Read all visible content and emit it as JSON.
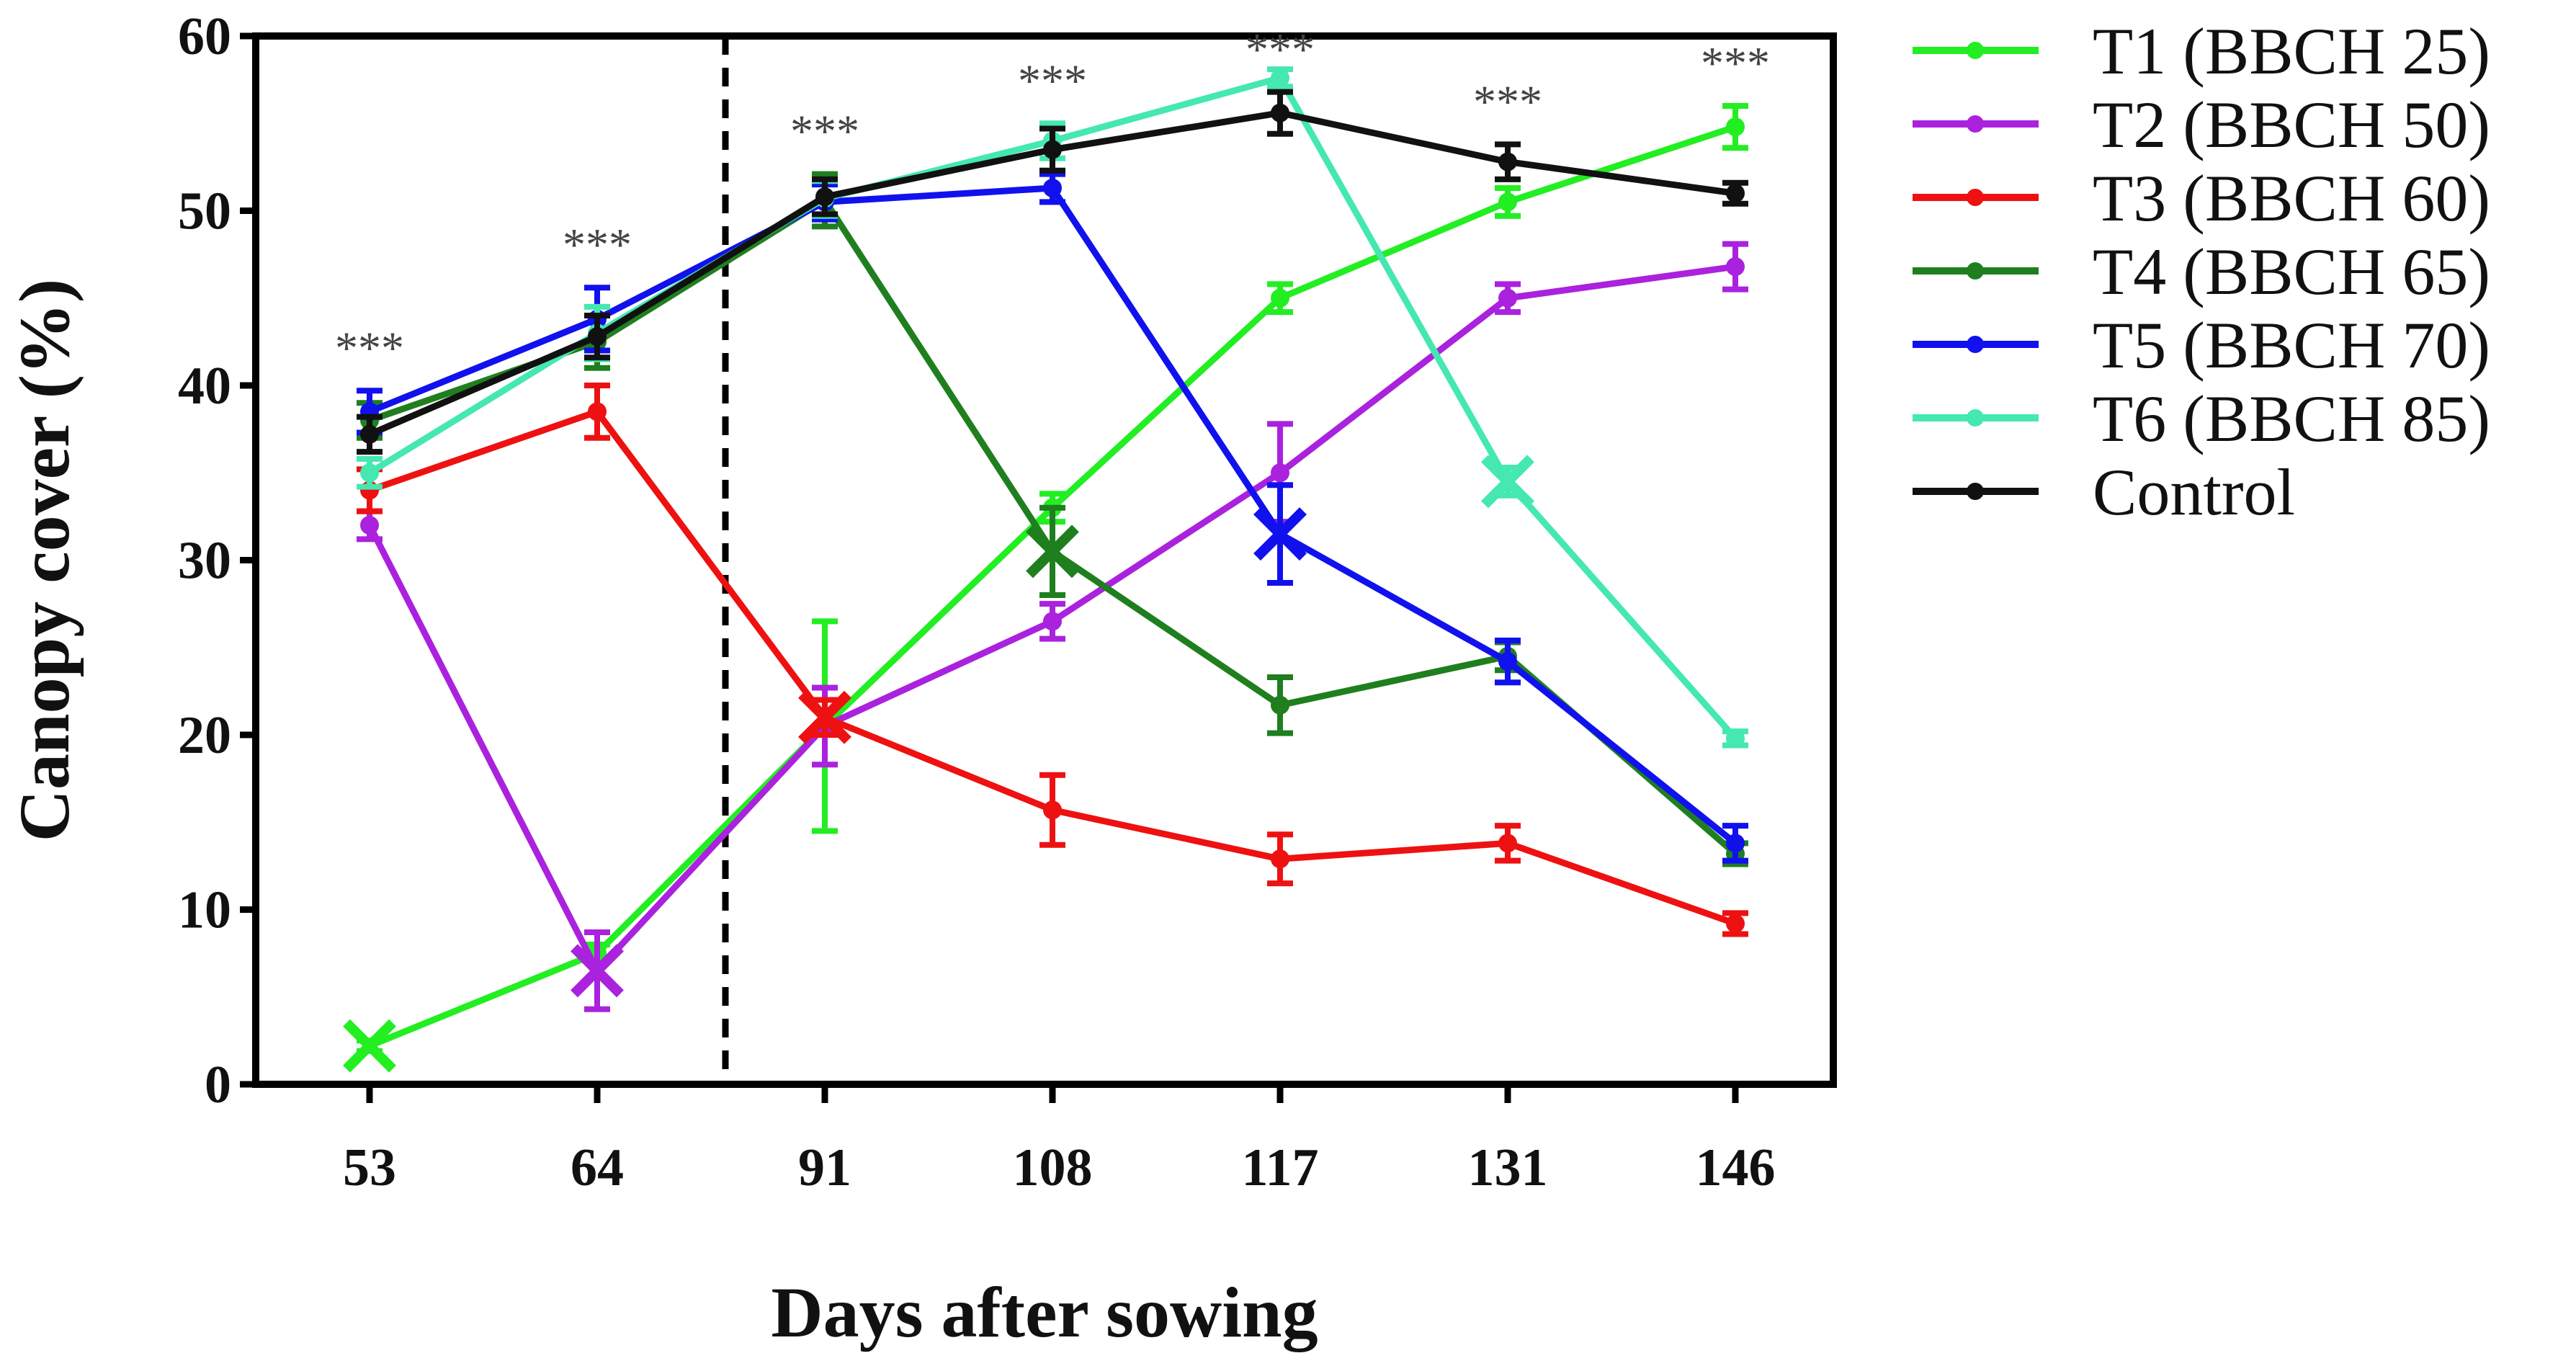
{
  "chart_data": {
    "type": "line",
    "title": "",
    "xlabel": "Days after sowing",
    "ylabel": "Canopy cover (%)",
    "categories": [
      "53",
      "64",
      "91",
      "108",
      "117",
      "131",
      "146"
    ],
    "ylim": [
      0,
      60
    ],
    "yticks": [
      "0",
      "10",
      "20",
      "30",
      "40",
      "50",
      "60"
    ],
    "dashed_line_after_category": "64",
    "significance": [
      {
        "x": "53",
        "label": "***"
      },
      {
        "x": "64",
        "label": "***"
      },
      {
        "x": "91",
        "label": "***"
      },
      {
        "x": "108",
        "label": "***"
      },
      {
        "x": "117",
        "label": "***"
      },
      {
        "x": "131",
        "label": "***"
      },
      {
        "x": "146",
        "label": "***"
      }
    ],
    "series": [
      {
        "name": "T1 (BBCH 25)",
        "color": "#22ee22",
        "values": [
          2.2,
          7.5,
          20.5,
          33.0,
          45.0,
          50.5,
          54.8
        ],
        "errors": [
          0.3,
          0.5,
          6.0,
          0.8,
          0.8,
          0.8,
          1.2
        ],
        "x_marker_index": 0
      },
      {
        "name": "T2 (BBCH 50)",
        "color": "#aa22dd",
        "values": [
          32.0,
          6.5,
          20.5,
          26.5,
          35.0,
          45.0,
          46.8
        ],
        "errors": [
          0.8,
          2.2,
          2.2,
          1.0,
          2.8,
          0.8,
          1.3
        ],
        "x_marker_index": 1
      },
      {
        "name": "T3 (BBCH 60)",
        "color": "#ee1111",
        "values": [
          34.0,
          38.5,
          21.0,
          15.7,
          12.9,
          13.8,
          9.2
        ],
        "errors": [
          1.2,
          1.5,
          1.0,
          2.0,
          1.4,
          1.0,
          0.6
        ],
        "x_marker_index": 2
      },
      {
        "name": "T4 (BBCH 65)",
        "color": "#1f7f1f",
        "values": [
          38.0,
          42.5,
          50.6,
          30.5,
          21.7,
          24.5,
          13.2
        ],
        "errors": [
          1.0,
          1.5,
          1.5,
          2.5,
          1.6,
          0.8,
          0.6
        ],
        "x_marker_index": 3
      },
      {
        "name": "T5 (BBCH 70)",
        "color": "#1111ee",
        "values": [
          38.5,
          43.8,
          50.5,
          51.3,
          31.5,
          24.2,
          13.8
        ],
        "errors": [
          1.2,
          1.8,
          1.0,
          0.8,
          2.8,
          1.2,
          1.0
        ],
        "x_marker_index": 4
      },
      {
        "name": "T6 (BBCH 85)",
        "color": "#44e8b0",
        "values": [
          35.0,
          43.0,
          50.7,
          54.0,
          57.6,
          34.5,
          19.8
        ],
        "errors": [
          0.8,
          1.5,
          1.0,
          1.0,
          0.5,
          0.8,
          0.4
        ],
        "x_marker_index": 5
      },
      {
        "name": "Control",
        "color": "#111111",
        "values": [
          37.2,
          42.8,
          50.8,
          53.5,
          55.6,
          52.8,
          51.0
        ],
        "errors": [
          1.0,
          1.2,
          1.0,
          1.2,
          1.2,
          1.0,
          0.6
        ],
        "x_marker_index": -1
      }
    ]
  }
}
